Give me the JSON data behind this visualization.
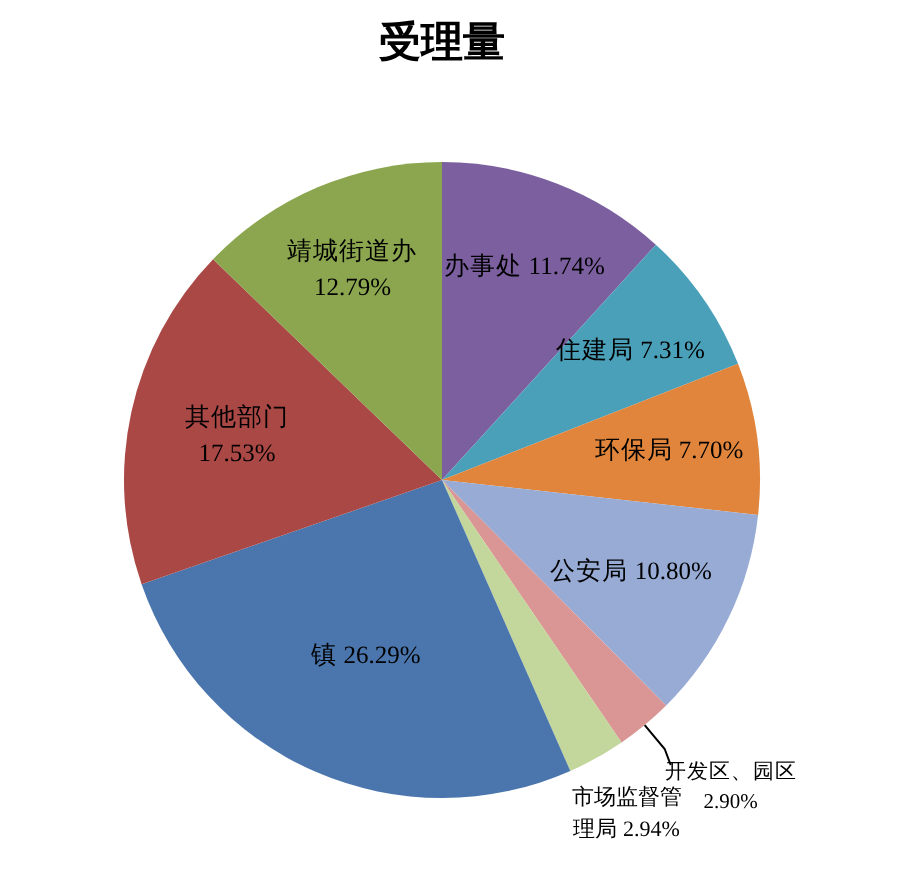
{
  "chart_data": {
    "type": "pie",
    "title": "受理量",
    "categories": [
      "办事处",
      "住建局",
      "环保局",
      "公安局",
      "开发区、园区",
      "市场监督管理局",
      "镇",
      "其他部门",
      "靖城街道办"
    ],
    "values": [
      11.74,
      7.31,
      7.7,
      10.8,
      2.9,
      2.94,
      26.29,
      17.53,
      12.79
    ],
    "colors": [
      "#7b5f9e",
      "#4aa0b9",
      "#e0853b",
      "#97abd5",
      "#d99694",
      "#c3d69b",
      "#4a76ad",
      "#aa4845",
      "#8ba64f"
    ],
    "value_labels": [
      "11.74%",
      "7.31%",
      "7.70%",
      "10.80%",
      "2.90%",
      "2.94%",
      "26.29%",
      "17.53%",
      "12.79%"
    ],
    "legend": false
  }
}
